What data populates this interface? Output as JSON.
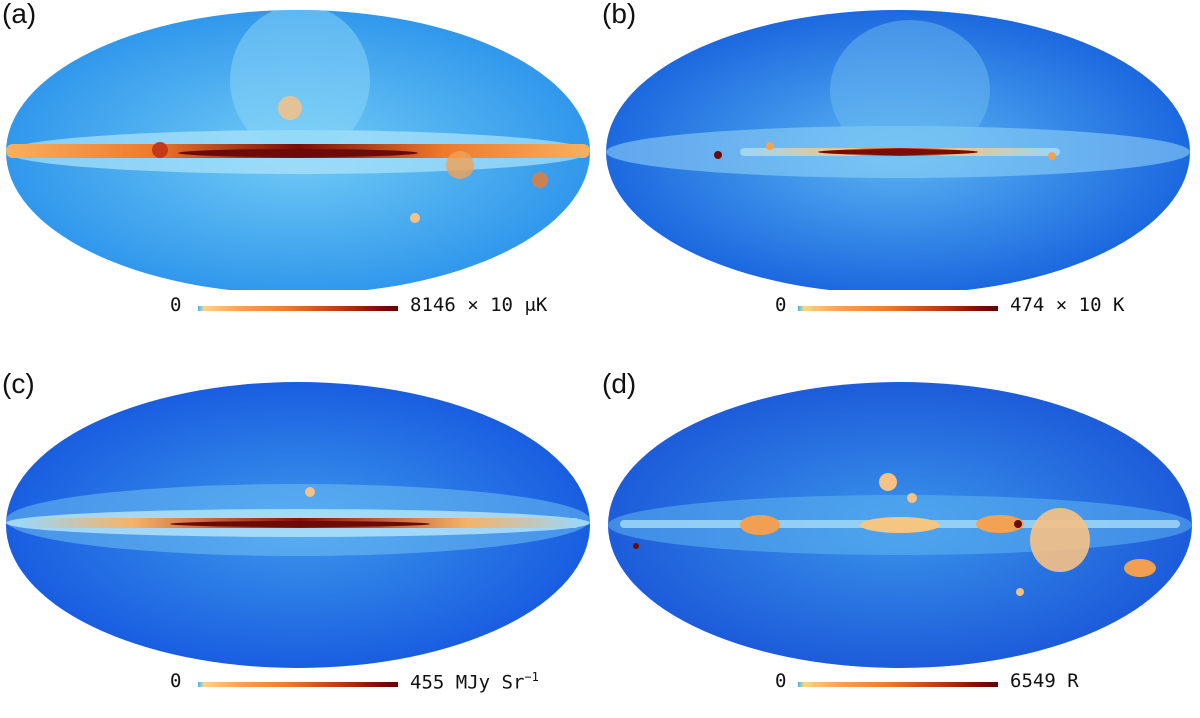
{
  "panels": [
    {
      "label": "(a)",
      "scale": {
        "min": "0",
        "max": "8146",
        "unit_prefix": "× 10",
        "unit": "μK",
        "unit_sup": ""
      },
      "palette": {
        "bg": "#1f86e6",
        "mid": "#5cc3f4",
        "band": "#f28a3b",
        "core": "#6b0b08"
      }
    },
    {
      "label": "(b)",
      "scale": {
        "min": "0",
        "max": "474",
        "unit_prefix": "× 10",
        "unit": "K",
        "unit_sup": ""
      },
      "palette": {
        "bg": "#1464dc",
        "mid": "#4fb2f0",
        "band": "#f59a48",
        "core": "#6b0b08"
      }
    },
    {
      "label": "(c)",
      "scale": {
        "min": "0",
        "max": "455",
        "unit_prefix": "",
        "unit": "MJy Sr",
        "unit_sup": "−1"
      },
      "palette": {
        "bg": "#1660e0",
        "mid": "#48a8ef",
        "band": "#f39445",
        "core": "#6b0b08"
      }
    },
    {
      "label": "(d)",
      "scale": {
        "min": "0",
        "max": "6549",
        "unit_prefix": "",
        "unit": "R",
        "unit_sup": ""
      },
      "palette": {
        "bg": "#1c5fd8",
        "mid": "#4aa6ee",
        "band": "#f3a04e",
        "core": "#8e1a0e"
      }
    }
  ]
}
